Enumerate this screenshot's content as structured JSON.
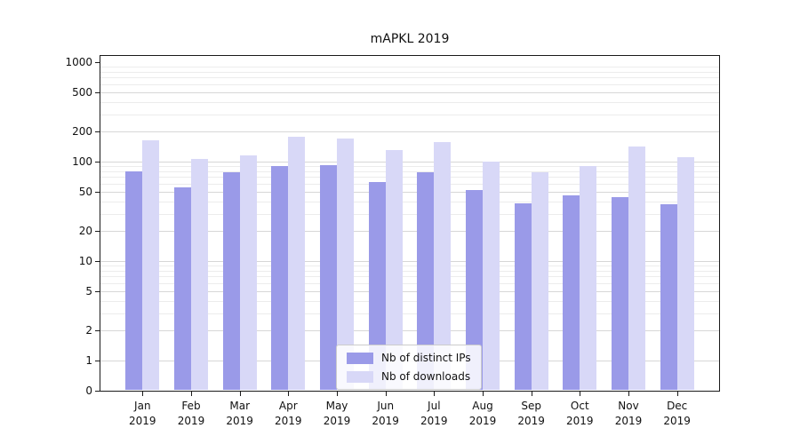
{
  "chart_data": {
    "type": "bar",
    "title": "mAPKL 2019",
    "categories": [
      "Jan 2019",
      "Feb 2019",
      "Mar 2019",
      "Apr 2019",
      "May 2019",
      "Jun 2019",
      "Jul 2019",
      "Aug 2019",
      "Sep 2019",
      "Oct 2019",
      "Nov 2019",
      "Dec 2019"
    ],
    "series": [
      {
        "name": "Nb of distinct IPs",
        "color": "#9a9ae8",
        "values": [
          80,
          55,
          78,
          90,
          93,
          62,
          78,
          52,
          38,
          46,
          44,
          37
        ]
      },
      {
        "name": "Nb of downloads",
        "color": "#d8d8f7",
        "values": [
          165,
          107,
          115,
          178,
          170,
          130,
          158,
          100,
          78,
          90,
          142,
          112
        ]
      }
    ],
    "yscale": "symlog",
    "yticks": [
      0,
      1,
      2,
      5,
      10,
      20,
      50,
      100,
      200,
      500,
      1000
    ],
    "ylim": [
      0,
      1000
    ],
    "xlabel": "",
    "ylabel": "",
    "grid": true,
    "legend_position": "lower center"
  }
}
